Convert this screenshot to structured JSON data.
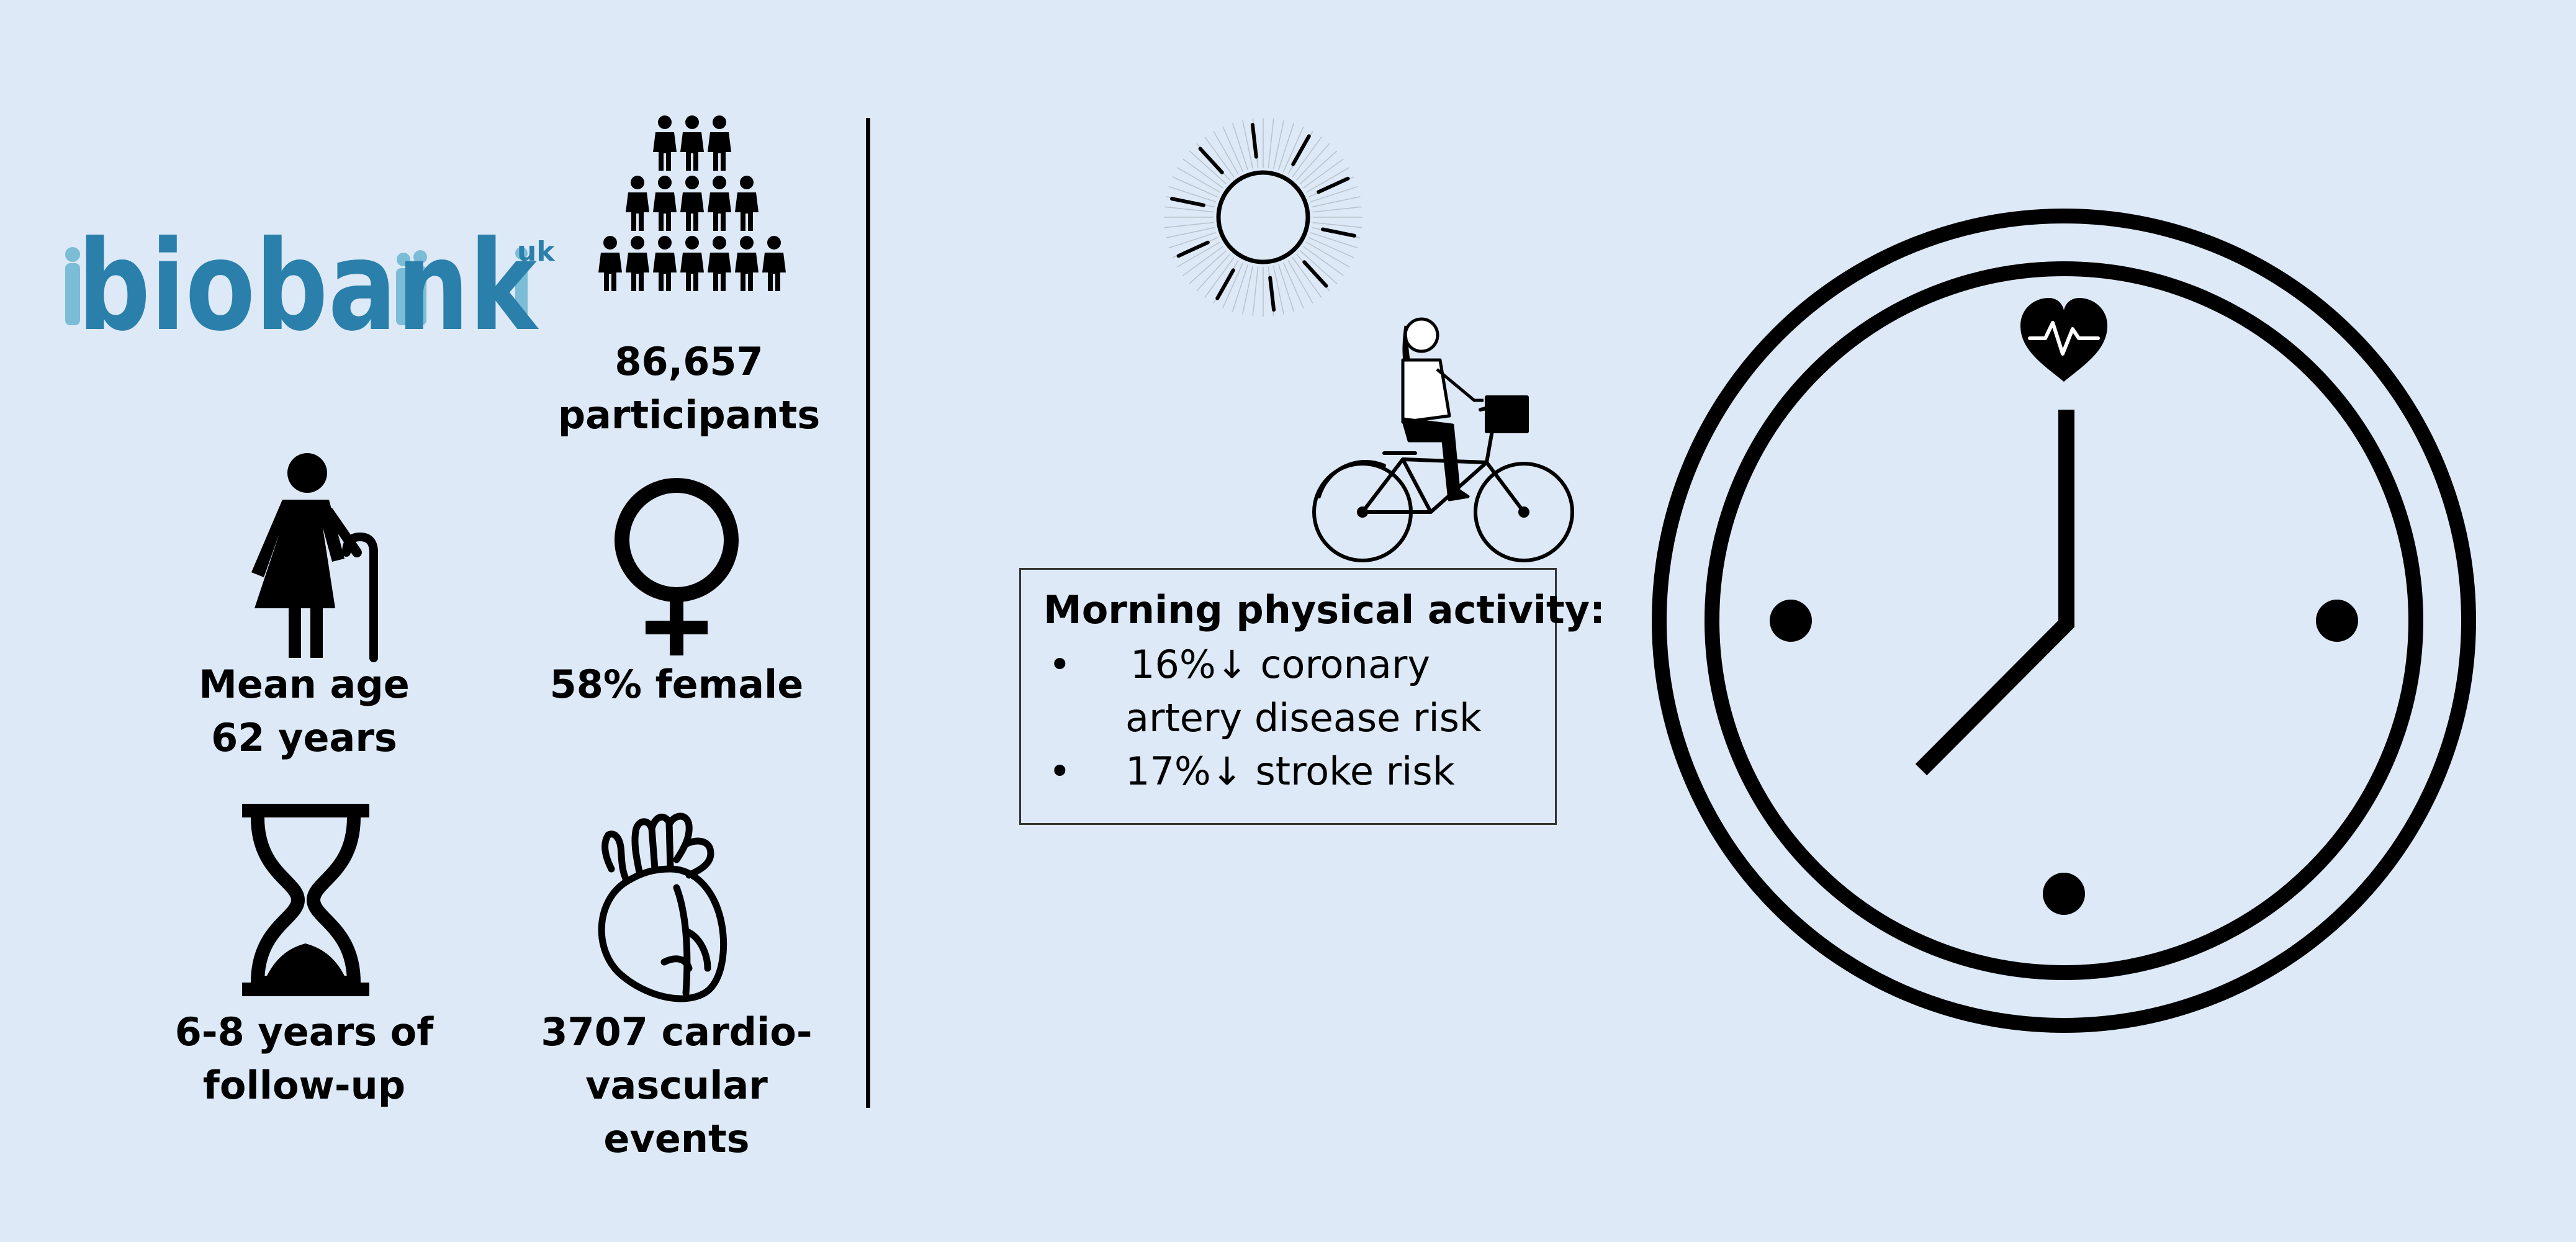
{
  "logo": {
    "text": "biobank",
    "superscript": "uk",
    "color": "#2a7fab",
    "figure_color": "#7bbcd6"
  },
  "stats": [
    {
      "id": "participants",
      "icon": "crowd-icon",
      "lines": [
        "86,657",
        "participants"
      ]
    },
    {
      "id": "age",
      "icon": "elderly-woman-icon",
      "lines": [
        "Mean age",
        "62 years"
      ]
    },
    {
      "id": "female",
      "icon": "female-symbol-icon",
      "lines": [
        "58% female"
      ]
    },
    {
      "id": "followup",
      "icon": "hourglass-icon",
      "lines": [
        "6-8 years of",
        "follow-up"
      ]
    },
    {
      "id": "events",
      "icon": "anatomical-heart-icon",
      "lines": [
        "3707 cardio-",
        "vascular events"
      ]
    }
  ],
  "activity": {
    "title": "Morning physical activity:",
    "bullet_glyph": "•",
    "bullets": [
      {
        "lines": [
          "16%↓ coronary",
          "artery disease risk"
        ]
      },
      {
        "lines": [
          "17%↓ stroke risk"
        ]
      }
    ]
  },
  "illustrations": {
    "sun": "sun-icon",
    "cyclist": "cyclist-icon",
    "clock": "clock-icon",
    "heartbeat": "heartbeat-icon"
  },
  "colors": {
    "background": "#dde9f6",
    "ink": "#000000"
  }
}
